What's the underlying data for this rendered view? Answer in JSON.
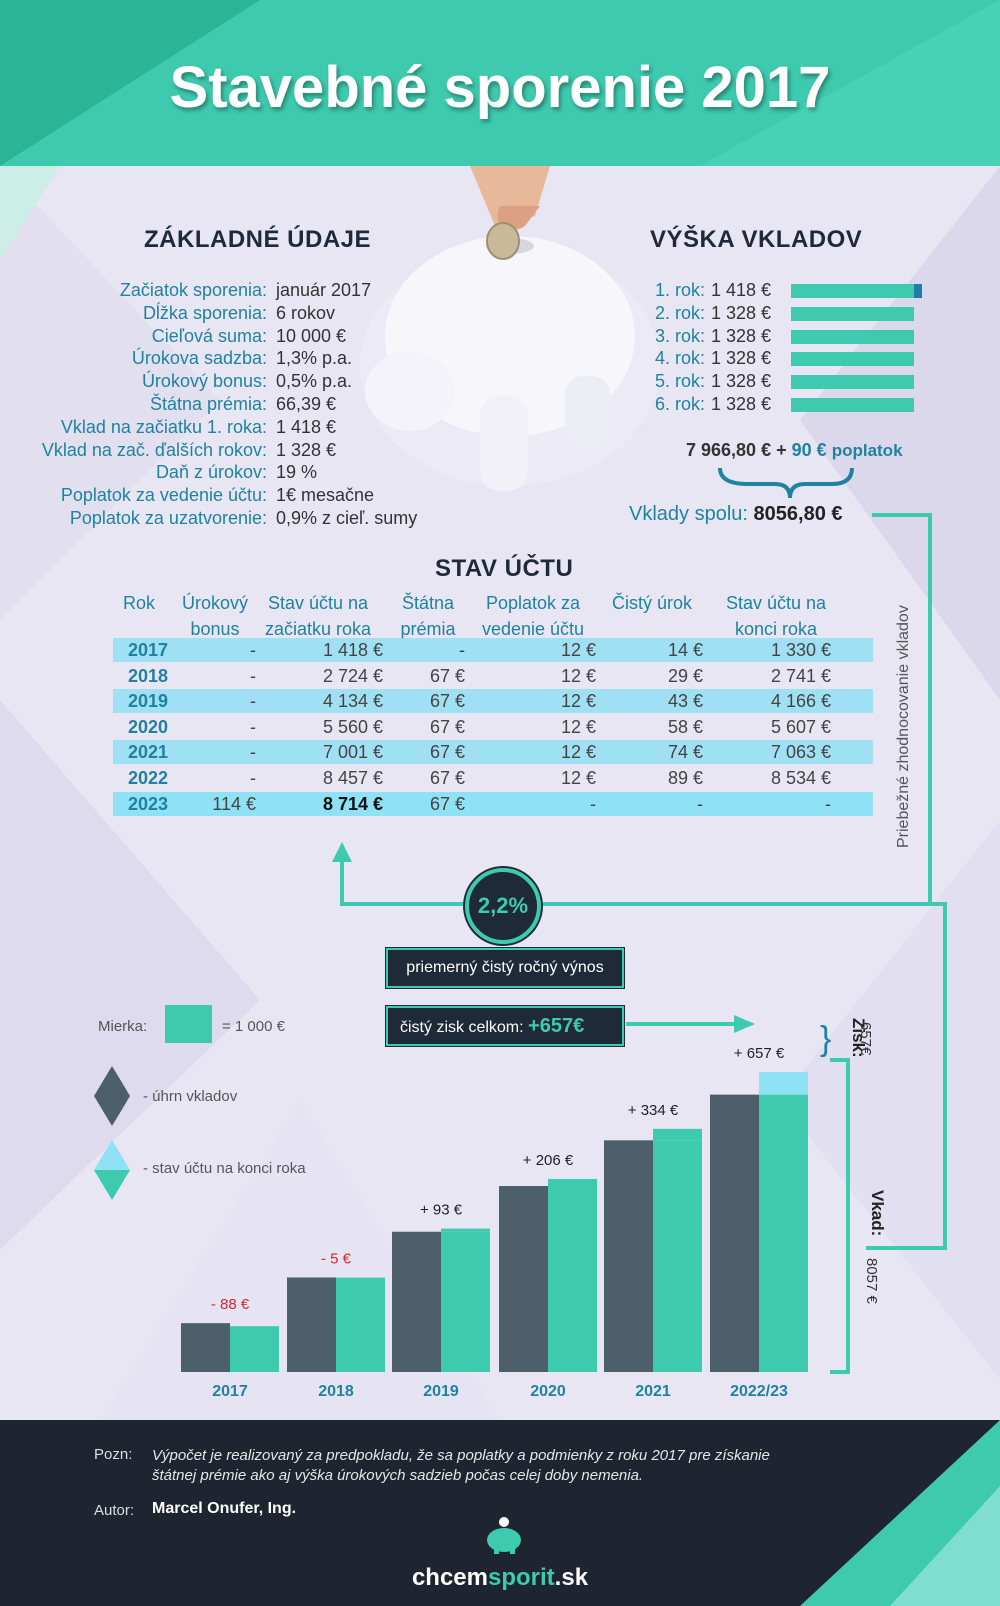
{
  "title": "Stavebné sporenie 2017",
  "basic": {
    "title": "ZÁKLADNÉ ÚDAJE",
    "rows": [
      {
        "label": "Začiatok sporenia:",
        "value": "január 2017"
      },
      {
        "label": "Dĺžka sporenia:",
        "value": "6 rokov"
      },
      {
        "label": "Cieľová suma:",
        "value": "10 000 €"
      },
      {
        "label": "Úrokova sadzba:",
        "value": "1,3% p.a."
      },
      {
        "label": "Úrokový bonus:",
        "value": "0,5% p.a."
      },
      {
        "label": "Štátna prémia:",
        "value": "66,39 €"
      },
      {
        "label": "Vklad na začiatku 1. roka:",
        "value": "1 418 €"
      },
      {
        "label": "Vklad na zač. ďalších rokov:",
        "value": "1 328 €"
      },
      {
        "label": "Daň z úrokov:",
        "value": "19 %"
      },
      {
        "label": "Poplatok za vedenie účtu:",
        "value": "1€ mesačne"
      },
      {
        "label": "Poplatok za uzatvorenie:",
        "value": "0,9% z cieľ. sumy"
      }
    ]
  },
  "deposits": {
    "title": "VÝŠKA VKLADOV",
    "rows": [
      {
        "label": "1. rok:",
        "value": "1 418 €",
        "amount": 1418
      },
      {
        "label": "2. rok:",
        "value": "1 328 €",
        "amount": 1328
      },
      {
        "label": "3. rok:",
        "value": "1 328 €",
        "amount": 1328
      },
      {
        "label": "4. rok:",
        "value": "1 328 €",
        "amount": 1328
      },
      {
        "label": "5. rok:",
        "value": "1 328 €",
        "amount": 1328
      },
      {
        "label": "6. rok:",
        "value": "1 328 €",
        "amount": 1328
      }
    ],
    "subtotal": "7 966,80 €",
    "plus": "+",
    "fee_amount": "90 €",
    "fee_label": "poplatok",
    "total_label": "Vklady spolu:",
    "total_value": "8056,80 €",
    "side_label": "Priebežné zhodnocovanie vkladov"
  },
  "account": {
    "title": "STAV ÚČTU",
    "headers": [
      "Rok",
      "Úrokový bonus",
      "Stav účtu na začiatku roka",
      "Štátna prémia",
      "Poplatok za vedenie účtu",
      "Čistý úrok",
      "Stav účtu na konci roka"
    ],
    "rows": [
      [
        "2017",
        "-",
        "1 418 €",
        "-",
        "12 €",
        "14 €",
        "1 330 €"
      ],
      [
        "2018",
        "-",
        "2 724 €",
        "67 €",
        "12 €",
        "29 €",
        "2 741 €"
      ],
      [
        "2019",
        "-",
        "4 134 €",
        "67 €",
        "12 €",
        "43 €",
        "4 166 €"
      ],
      [
        "2020",
        "-",
        "5 560 €",
        "67 €",
        "12 €",
        "58 €",
        "5 607 €"
      ],
      [
        "2021",
        "-",
        "7 001 €",
        "67 €",
        "12 €",
        "74 €",
        "7 063 €"
      ],
      [
        "2022",
        "-",
        "8 457 €",
        "67 €",
        "12 €",
        "89 €",
        "8 534 €"
      ],
      [
        "2023",
        "114 €",
        "8 714 €",
        "67 €",
        "-",
        "-",
        "-"
      ]
    ]
  },
  "yield": {
    "rate": "2,2%",
    "rate_label": "priemerný čistý ročný výnos",
    "profit_label": "čistý zisk celkom:",
    "profit_value": "+657€"
  },
  "legend": {
    "scale_label": "Mierka:",
    "scale_value": "= 1 000 €",
    "deposits_label": "- úhrn vkladov",
    "balance_label": "- stav účtu na konci roka"
  },
  "side_annotations": {
    "profit_label": "Zisk:",
    "profit_value": "657€",
    "deposit_label": "Vkad:",
    "deposit_value": "8057 €"
  },
  "chart_data": {
    "type": "bar",
    "categories": [
      "2017",
      "2018",
      "2019",
      "2020",
      "2021",
      "2022/23"
    ],
    "series": [
      {
        "values": [
          1418,
          2746,
          4074,
          5402,
          6730,
          8057
        ],
        "color": "#4d5f6a"
      },
      {
        "values": [
          1330,
          2741,
          4166,
          5607,
          7063,
          8714
        ],
        "color": "#3ecaae"
      }
    ],
    "diff_labels": [
      "- 88 €",
      "- 5 €",
      "+ 93 €",
      "+ 206 €",
      "+ 334 €",
      "+ 657 €"
    ],
    "diff_values": [
      -88,
      -5,
      93,
      206,
      334,
      657
    ],
    "profit_color": "#8fe1f5",
    "negative_color": "#d9252e",
    "label_color": "#1f82a1"
  }
}
